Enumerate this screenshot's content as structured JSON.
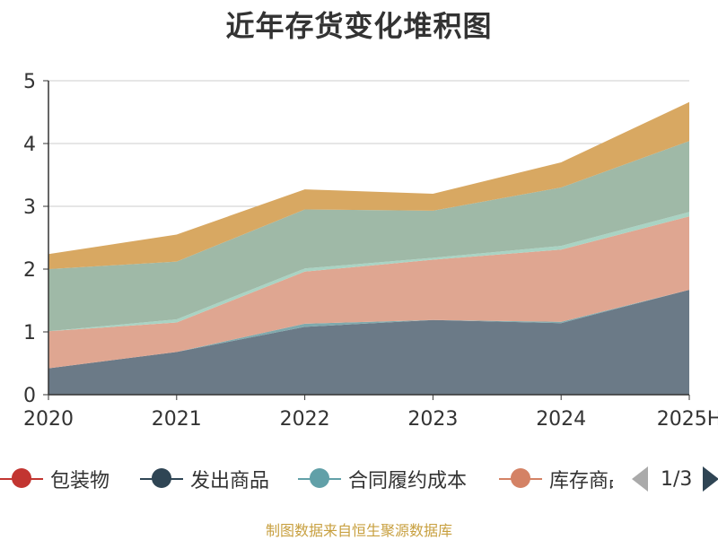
{
  "source": "制图数据来自恒生聚源数据库",
  "legend_pager": "1/3",
  "colors": {
    "包装物": "#c23531",
    "发出商品": "#2f4554",
    "合同履约成本": "#61a0a8",
    "库存商品": "#d48265",
    "原材料": "#91c7ae",
    "周转材料": "#ca8622"
  },
  "chart_data": {
    "type": "area",
    "stacked": true,
    "title": "近年存货变化堆积图",
    "categories": [
      "2020",
      "2021",
      "2022",
      "2023",
      "2024",
      "2025H"
    ],
    "ylim": [
      0,
      5
    ],
    "yticks": [
      "0",
      "1",
      "2",
      "3",
      "4",
      "5"
    ],
    "grid": true,
    "legend_position": "bottom",
    "series": [
      {
        "name": "包装物",
        "values": [
          0,
          0,
          0,
          0,
          0,
          0
        ]
      },
      {
        "name": "发出商品",
        "values": [
          0.42,
          0.68,
          1.08,
          1.19,
          1.14,
          1.67
        ]
      },
      {
        "name": "合同履约成本",
        "values": [
          0.0,
          0.0,
          0.05,
          0.0,
          0.02,
          0.0
        ]
      },
      {
        "name": "库存商品",
        "values": [
          0.59,
          0.47,
          0.83,
          0.96,
          1.15,
          1.17
        ]
      },
      {
        "name": "",
        "values": [
          0.0,
          0.05,
          0.05,
          0.03,
          0.06,
          0.07
        ]
      },
      {
        "name": "",
        "values": [
          0.99,
          0.92,
          0.94,
          0.75,
          0.93,
          1.13
        ]
      },
      {
        "name": "",
        "values": [
          0.24,
          0.43,
          0.32,
          0.27,
          0.4,
          0.62
        ]
      }
    ],
    "series_colors": [
      "#c23531",
      "#6b7a87",
      "#7fa9ad",
      "#dfa691",
      "#a9d3c3",
      "#9fb9a7",
      "#d8a862"
    ]
  }
}
